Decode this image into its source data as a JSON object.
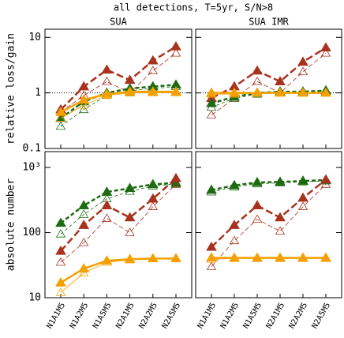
{
  "title": "all detections, T=5yr, S/N>8",
  "chart_data": [
    {
      "type": "line",
      "title": "SUA",
      "ylabel": "relative loss/gain",
      "log_y": true,
      "ylim": [
        0.1,
        14
      ],
      "yticks": [
        0.1,
        1,
        10
      ],
      "ytick_labels": true,
      "hline": 1,
      "series": [
        {
          "color": "#a8321e",
          "filled": true,
          "dash": "9 4",
          "width": 2.5,
          "values": [
            0.5,
            1.3,
            2.6,
            1.7,
            3.8,
            6.8
          ]
        },
        {
          "color": "#a8321e",
          "filled": false,
          "dash": "6 3",
          "width": 0.8,
          "values": [
            0.45,
            0.9,
            1.6,
            1.0,
            2.5,
            5.2
          ]
        },
        {
          "color": "#1e6b12",
          "filled": true,
          "dash": "5 3",
          "width": 2.5,
          "values": [
            0.35,
            0.7,
            1.0,
            1.2,
            1.3,
            1.4
          ]
        },
        {
          "color": "#1e6b12",
          "filled": false,
          "dash": "4 3",
          "width": 0.8,
          "values": [
            0.25,
            0.5,
            0.9,
            1.1,
            1.2,
            1.3
          ]
        },
        {
          "color": "#f5a000",
          "filled": true,
          "dash": "solid",
          "width": 2.5,
          "values": [
            0.45,
            0.75,
            0.95,
            1.05,
            1.05,
            1.05
          ]
        },
        {
          "color": "#f5a000",
          "filled": false,
          "dash": "solid",
          "width": 0.8,
          "values": [
            0.35,
            0.6,
            0.9,
            1.0,
            1.0,
            1.0
          ]
        }
      ]
    },
    {
      "type": "line",
      "title": "SUA IMR",
      "log_y": true,
      "ylim": [
        0.1,
        14
      ],
      "yticks": [
        0.1,
        1,
        10
      ],
      "ytick_labels": false,
      "hline": 1,
      "series": [
        {
          "color": "#a8321e",
          "filled": true,
          "dash": "9 4",
          "width": 2.5,
          "values": [
            0.8,
            1.3,
            2.5,
            1.6,
            3.6,
            6.5
          ]
        },
        {
          "color": "#a8321e",
          "filled": false,
          "dash": "6 3",
          "width": 0.8,
          "values": [
            0.4,
            0.8,
            1.6,
            1.0,
            2.4,
            5.2
          ]
        },
        {
          "color": "#1e6b12",
          "filled": true,
          "dash": "5 3",
          "width": 2.5,
          "values": [
            0.65,
            0.85,
            1.0,
            1.05,
            1.05,
            1.1
          ]
        },
        {
          "color": "#1e6b12",
          "filled": false,
          "dash": "4 3",
          "width": 0.8,
          "values": [
            0.55,
            0.8,
            0.95,
            1.0,
            1.0,
            1.05
          ]
        },
        {
          "color": "#f5a000",
          "filled": true,
          "dash": "solid",
          "width": 2.5,
          "values": [
            1.0,
            1.0,
            1.0,
            1.0,
            1.0,
            1.0
          ]
        },
        {
          "color": "#f5a000",
          "filled": false,
          "dash": "solid",
          "width": 0.8,
          "values": [
            0.95,
            0.95,
            1.0,
            1.0,
            1.0,
            1.0
          ]
        }
      ]
    },
    {
      "type": "line",
      "ylabel": "absolute number",
      "log_y": true,
      "ylim": [
        10,
        1750
      ],
      "yticks": [
        10,
        100,
        {
          "value": 1000,
          "label": "10³"
        }
      ],
      "ytick_labels": true,
      "categories": [
        "N1A1M5",
        "N1A2M5",
        "N1A5M5",
        "N2A1M5",
        "N2A2M5",
        "N2A5M5"
      ],
      "series": [
        {
          "color": "#1e6b12",
          "filled": true,
          "dash": "5 3",
          "width": 2.5,
          "values": [
            140,
            260,
            420,
            480,
            550,
            580
          ]
        },
        {
          "color": "#1e6b12",
          "filled": false,
          "dash": "4 3",
          "width": 0.8,
          "values": [
            95,
            190,
            330,
            430,
            520,
            560
          ]
        },
        {
          "color": "#a8321e",
          "filled": true,
          "dash": "9 4",
          "width": 2.5,
          "values": [
            52,
            130,
            260,
            170,
            330,
            680
          ]
        },
        {
          "color": "#a8321e",
          "filled": false,
          "dash": "6 3",
          "width": 0.8,
          "values": [
            35,
            70,
            165,
            100,
            250,
            550
          ]
        },
        {
          "color": "#f5a000",
          "filled": true,
          "dash": "solid",
          "width": 2.5,
          "values": [
            17,
            28,
            37,
            39,
            40,
            40
          ]
        },
        {
          "color": "#f5a000",
          "filled": false,
          "dash": "solid",
          "width": 0.8,
          "values": [
            12,
            24,
            35,
            38,
            40,
            40
          ]
        }
      ]
    },
    {
      "type": "line",
      "log_y": true,
      "ylim": [
        10,
        1750
      ],
      "yticks": [
        10,
        100,
        1000
      ],
      "ytick_labels": false,
      "categories": [
        "N1A1M5",
        "N1A2M5",
        "N1A5M5",
        "N2A1M5",
        "N2A2M5",
        "N2A5M5"
      ],
      "series": [
        {
          "color": "#1e6b12",
          "filled": true,
          "dash": "5 3",
          "width": 2.5,
          "values": [
            450,
            530,
            590,
            600,
            620,
            640
          ]
        },
        {
          "color": "#1e6b12",
          "filled": false,
          "dash": "4 3",
          "width": 0.8,
          "values": [
            420,
            500,
            560,
            580,
            600,
            620
          ]
        },
        {
          "color": "#a8321e",
          "filled": true,
          "dash": "9 4",
          "width": 2.5,
          "values": [
            60,
            130,
            260,
            170,
            340,
            650
          ]
        },
        {
          "color": "#a8321e",
          "filled": false,
          "dash": "6 3",
          "width": 0.8,
          "values": [
            30,
            75,
            160,
            105,
            250,
            550
          ]
        },
        {
          "color": "#f5a000",
          "filled": true,
          "dash": "solid",
          "width": 2.5,
          "values": [
            41,
            41,
            41,
            41,
            41,
            41
          ]
        },
        {
          "color": "#f5a000",
          "filled": false,
          "dash": "solid",
          "width": 0.8,
          "values": [
            39,
            40,
            40,
            40,
            40,
            40
          ]
        }
      ]
    }
  ]
}
